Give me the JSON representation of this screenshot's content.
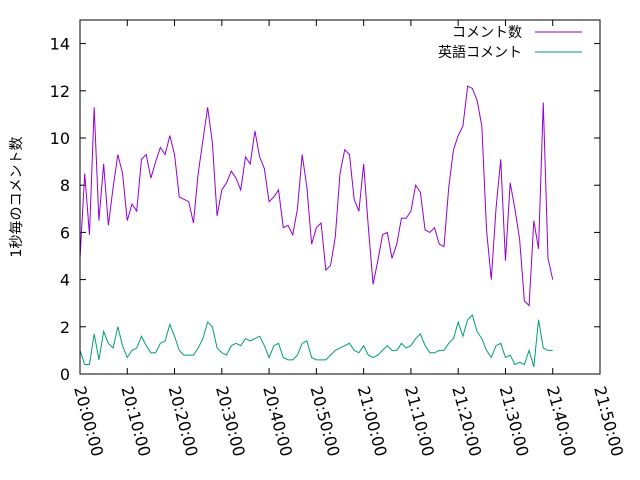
{
  "chart_data": {
    "type": "line",
    "ylabel": "1秒毎のコメント数",
    "xlabel": "",
    "ylim": [
      0,
      15
    ],
    "yticks": [
      "0",
      "2",
      "4",
      "6",
      "8",
      "10",
      "12",
      "14"
    ],
    "xticks": [
      "20:00:00",
      "20:10:00",
      "20:20:00",
      "20:30:00",
      "20:40:00",
      "20:50:00",
      "21:00:00",
      "21:10:00",
      "21:20:00",
      "21:30:00",
      "21:40:00",
      "21:50:00"
    ],
    "x_start": "20:00:00",
    "x_step_seconds": 60,
    "legend_position": "top-right",
    "grid": false,
    "series": [
      {
        "name": "コメント数",
        "color": "#9400d3",
        "values": [
          4.9,
          8.5,
          5.9,
          11.3,
          6.5,
          8.9,
          6.3,
          7.9,
          9.3,
          8.5,
          6.5,
          7.2,
          6.9,
          9.1,
          9.3,
          8.3,
          9.0,
          9.6,
          9.3,
          10.1,
          9.3,
          7.5,
          7.4,
          7.3,
          6.4,
          8.5,
          9.9,
          11.3,
          9.8,
          6.7,
          7.8,
          8.1,
          8.6,
          8.3,
          7.8,
          9.2,
          8.9,
          10.3,
          9.2,
          8.7,
          7.3,
          7.5,
          7.8,
          6.2,
          6.3,
          5.9,
          7.0,
          9.3,
          7.9,
          5.5,
          6.2,
          6.4,
          4.4,
          4.6,
          5.8,
          8.5,
          9.5,
          9.3,
          7.4,
          6.9,
          8.9,
          6.2,
          3.8,
          4.8,
          5.9,
          6.0,
          4.9,
          5.5,
          6.6,
          6.6,
          6.9,
          8.0,
          7.7,
          6.1,
          6.0,
          6.2,
          5.5,
          5.4,
          7.9,
          9.5,
          10.1,
          10.5,
          12.2,
          12.1,
          11.6,
          10.5,
          6.1,
          4.0,
          7.0,
          9.1,
          4.8,
          8.1,
          7.0,
          5.7,
          3.1,
          2.9,
          6.5,
          5.3,
          11.5,
          4.9,
          4.0
        ]
      },
      {
        "name": "英語コメント",
        "color": "#009e73",
        "values": [
          1.0,
          0.4,
          0.4,
          1.7,
          0.6,
          1.8,
          1.3,
          1.1,
          2.0,
          1.2,
          0.7,
          1.0,
          1.1,
          1.6,
          1.2,
          0.9,
          0.9,
          1.3,
          1.4,
          2.1,
          1.6,
          1.0,
          0.8,
          0.8,
          0.8,
          1.1,
          1.5,
          2.2,
          2.0,
          1.1,
          0.9,
          0.8,
          1.2,
          1.3,
          1.2,
          1.5,
          1.4,
          1.5,
          1.6,
          1.2,
          0.7,
          1.2,
          1.3,
          0.7,
          0.6,
          0.6,
          0.8,
          1.3,
          1.4,
          0.7,
          0.6,
          0.6,
          0.6,
          0.8,
          1.0,
          1.1,
          1.2,
          1.3,
          1.0,
          0.9,
          1.2,
          0.8,
          0.7,
          0.8,
          1.0,
          1.2,
          1.0,
          1.0,
          1.3,
          1.1,
          1.2,
          1.5,
          1.7,
          1.2,
          0.9,
          0.9,
          1.0,
          1.0,
          1.3,
          1.5,
          2.2,
          1.6,
          2.3,
          2.5,
          1.8,
          1.5,
          1.0,
          0.7,
          1.2,
          1.3,
          0.7,
          0.8,
          0.4,
          0.5,
          0.4,
          1.0,
          0.3,
          2.3,
          1.1,
          1.0,
          1.0
        ]
      }
    ]
  }
}
